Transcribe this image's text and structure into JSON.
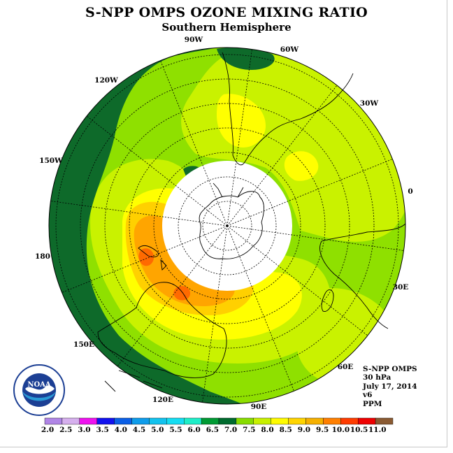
{
  "title": "S-NPP OMPS OZONE MIXING RATIO",
  "subtitle": "Southern Hemisphere",
  "longitude_labels": [
    "90W",
    "60W",
    "30W",
    "0",
    "30E",
    "60E",
    "90E",
    "120E",
    "150E",
    "180",
    "150W",
    "120W"
  ],
  "info": {
    "satellite": "S-NPP OMPS",
    "level": "30 hPa",
    "date": "July 17, 2014",
    "version": "v6",
    "units": "PPM"
  },
  "logo_text": "NOAA",
  "colorbar": {
    "ticks": [
      "2.0",
      "2.5",
      "3.0",
      "3.5",
      "4.0",
      "4.5",
      "5.0",
      "5.5",
      "6.0",
      "6.5",
      "7.0",
      "7.5",
      "8.0",
      "8.5",
      "9.0",
      "9.5",
      "10.0",
      "10.5",
      "11.0"
    ],
    "colors": [
      "#b085e6",
      "#d6b0ee",
      "#ee11ee",
      "#1111ee",
      "#0b5fe6",
      "#0e9cea",
      "#12c2ee",
      "#14ddf2",
      "#1eeec8",
      "#009a33",
      "#006b2e",
      "#88dc00",
      "#c8f000",
      "#fffb00",
      "#ffd400",
      "#f5b000",
      "#ff7f00",
      "#ff3c00",
      "#ee0000",
      "#8a5a32"
    ]
  },
  "map_colors": {
    "dark_green": "#0e6a2a",
    "green": "#8fe000",
    "lime": "#c9f200",
    "yellow": "#ffff00",
    "gold": "#ffd000",
    "orange": "#ffa500",
    "red_orange": "#ff6a00"
  }
}
